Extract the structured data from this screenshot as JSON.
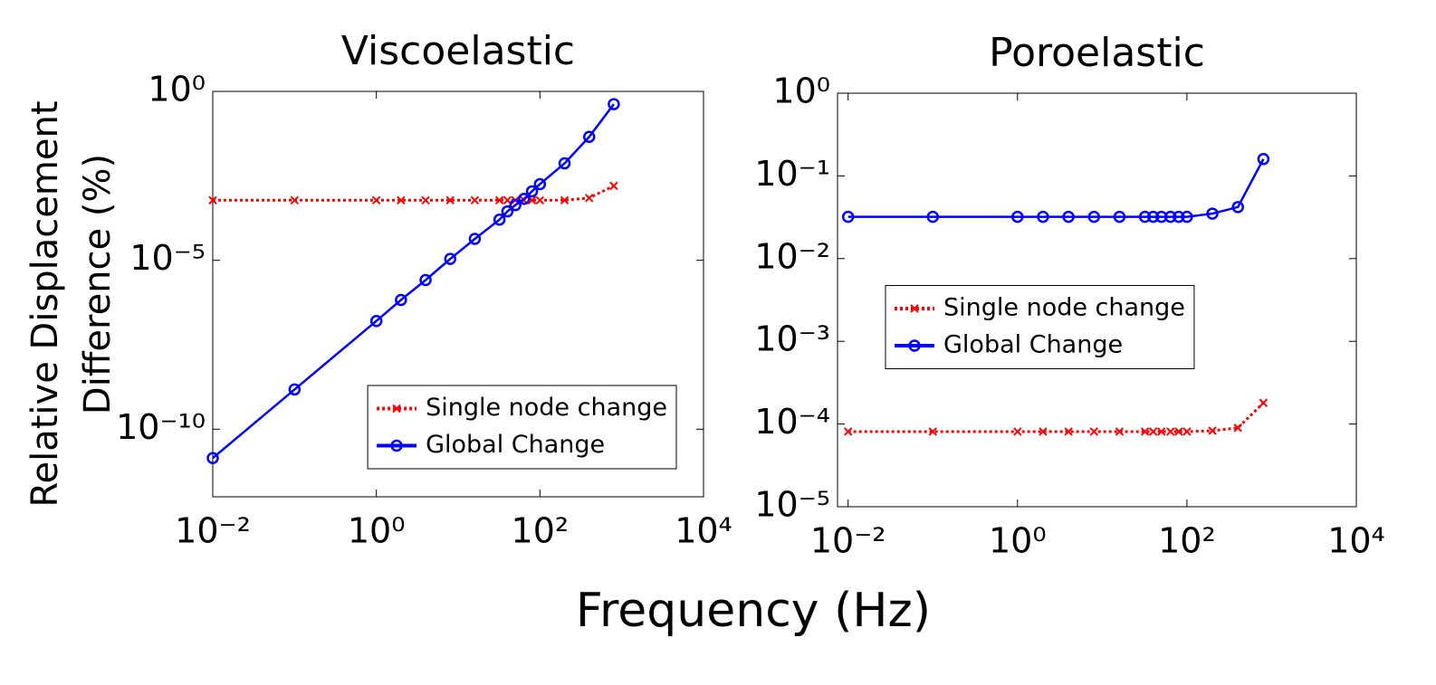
{
  "x_label": "Frequency (Hz)",
  "y_label": [
    "Relative Displacement",
    "Difference (%)"
  ],
  "chart_data": [
    {
      "type": "line",
      "title": "Viscoelastic",
      "log_x": true,
      "log_y": true,
      "grid": false,
      "legend": "lower right",
      "x": [
        0.01,
        0.1,
        1,
        2,
        4,
        8,
        16,
        32,
        40,
        50,
        64,
        80,
        100,
        200,
        400,
        800
      ],
      "series": [
        {
          "name": "Single node change",
          "color": "#ff0000",
          "style": "dotted",
          "marker": "x",
          "values": [
            0.0006,
            0.0006,
            0.0006,
            0.0006,
            0.0006,
            0.0006,
            0.0006,
            0.0006,
            0.0006,
            0.0006,
            0.0006,
            0.0006,
            0.0006,
            0.0006,
            0.0007,
            0.0016
          ]
        },
        {
          "name": "Global Change",
          "color": "#0000ff",
          "style": "solid",
          "marker": "o",
          "values": [
            1.4e-11,
            1.5e-09,
            1.6e-07,
            6.7e-07,
            2.6e-06,
            1.1e-05,
            4.3e-05,
            0.00016,
            0.00028,
            0.00043,
            0.00066,
            0.0011,
            0.0018,
            0.0074,
            0.045,
            0.42
          ]
        }
      ],
      "xlim": [
        0.01,
        10000
      ],
      "ylim": [
        1e-12,
        1
      ],
      "xticks": [
        {
          "value": 0.01,
          "label": "10⁻²"
        },
        {
          "value": 1,
          "label": "10⁰"
        },
        {
          "value": 100,
          "label": "10²"
        },
        {
          "value": 10000,
          "label": "10⁴"
        }
      ],
      "yticks": [
        {
          "value": 1,
          "label": "10⁰"
        },
        {
          "value": 1e-05,
          "label": "10⁻⁵"
        },
        {
          "value": 1e-10,
          "label": "10⁻¹⁰"
        }
      ]
    },
    {
      "type": "line",
      "title": "Poroelastic",
      "log_x": true,
      "log_y": true,
      "grid": false,
      "legend": "center left",
      "x": [
        0.01,
        0.1,
        1,
        2,
        4,
        8,
        16,
        32,
        40,
        50,
        64,
        80,
        100,
        200,
        400,
        800
      ],
      "series": [
        {
          "name": "Single node change",
          "color": "#ff0000",
          "style": "dotted",
          "marker": "x",
          "values": [
            8.1e-05,
            8.1e-05,
            8.1e-05,
            8.1e-05,
            8.1e-05,
            8.1e-05,
            8.1e-05,
            8.1e-05,
            8.1e-05,
            8.1e-05,
            8.1e-05,
            8.1e-05,
            8.1e-05,
            8.3e-05,
            9e-05,
            0.00018
          ]
        },
        {
          "name": "Global Change",
          "color": "#0000ff",
          "style": "solid",
          "marker": "o",
          "values": [
            0.032,
            0.032,
            0.032,
            0.032,
            0.032,
            0.032,
            0.032,
            0.032,
            0.032,
            0.032,
            0.032,
            0.032,
            0.032,
            0.035,
            0.042,
            0.16
          ]
        }
      ],
      "xlim": [
        0.0075,
        10000
      ],
      "ylim": [
        1e-05,
        1
      ],
      "xticks": [
        {
          "value": 0.01,
          "label": "10⁻²"
        },
        {
          "value": 1,
          "label": "10⁰"
        },
        {
          "value": 100,
          "label": "10²"
        },
        {
          "value": 10000,
          "label": "10⁴"
        }
      ],
      "yticks": [
        {
          "value": 1,
          "label": "10⁰"
        },
        {
          "value": 0.1,
          "label": "10⁻¹"
        },
        {
          "value": 0.01,
          "label": "10⁻²"
        },
        {
          "value": 0.001,
          "label": "10⁻³"
        },
        {
          "value": 0.0001,
          "label": "10⁻⁴"
        },
        {
          "value": 1e-05,
          "label": "10⁻⁵"
        }
      ]
    }
  ]
}
